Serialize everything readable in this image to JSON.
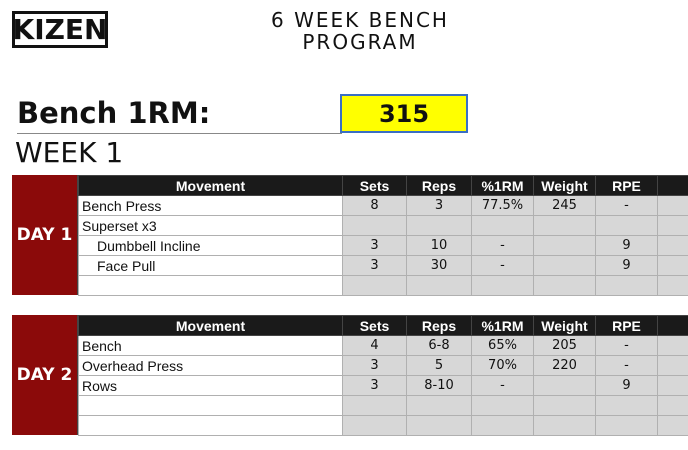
{
  "logo_text": "KIZEN",
  "program_title_line1": "6 WEEK BENCH",
  "program_title_line2": "PROGRAM",
  "one_rm_label": "Bench 1RM:",
  "one_rm_value": "315",
  "week_label": "WEEK 1",
  "headers": [
    "Movement",
    "Sets",
    "Reps",
    "%1RM",
    "Weight",
    "RPE"
  ],
  "days": [
    {
      "label": "DAY 1",
      "rows": [
        {
          "movement": "Bench Press",
          "sets": "8",
          "reps": "3",
          "rm": "77.5%",
          "weight": "245",
          "rpe": "-"
        },
        {
          "movement": "Superset x3",
          "sets": "",
          "reps": "",
          "rm": "",
          "weight": "",
          "rpe": ""
        },
        {
          "movement": "Dumbbell Incline",
          "sets": "3",
          "reps": "10",
          "rm": "-",
          "weight": "",
          "rpe": "9"
        },
        {
          "movement": "Face Pull",
          "sets": "3",
          "reps": "30",
          "rm": "-",
          "weight": "",
          "rpe": "9"
        },
        {
          "movement": "",
          "sets": "",
          "reps": "",
          "rm": "",
          "weight": "",
          "rpe": ""
        }
      ]
    },
    {
      "label": "DAY 2",
      "rows": [
        {
          "movement": "Bench",
          "sets": "4",
          "reps": "6-8",
          "rm": "65%",
          "weight": "205",
          "rpe": "-"
        },
        {
          "movement": "Overhead Press",
          "sets": "3",
          "reps": "5",
          "rm": "70%",
          "weight": "220",
          "rpe": "-"
        },
        {
          "movement": "Rows",
          "sets": "3",
          "reps": "8-10",
          "rm": "-",
          "weight": "",
          "rpe": "9"
        },
        {
          "movement": "",
          "sets": "",
          "reps": "",
          "rm": "",
          "weight": "",
          "rpe": ""
        },
        {
          "movement": "",
          "sets": "",
          "reps": "",
          "rm": "",
          "weight": "",
          "rpe": ""
        }
      ]
    }
  ]
}
